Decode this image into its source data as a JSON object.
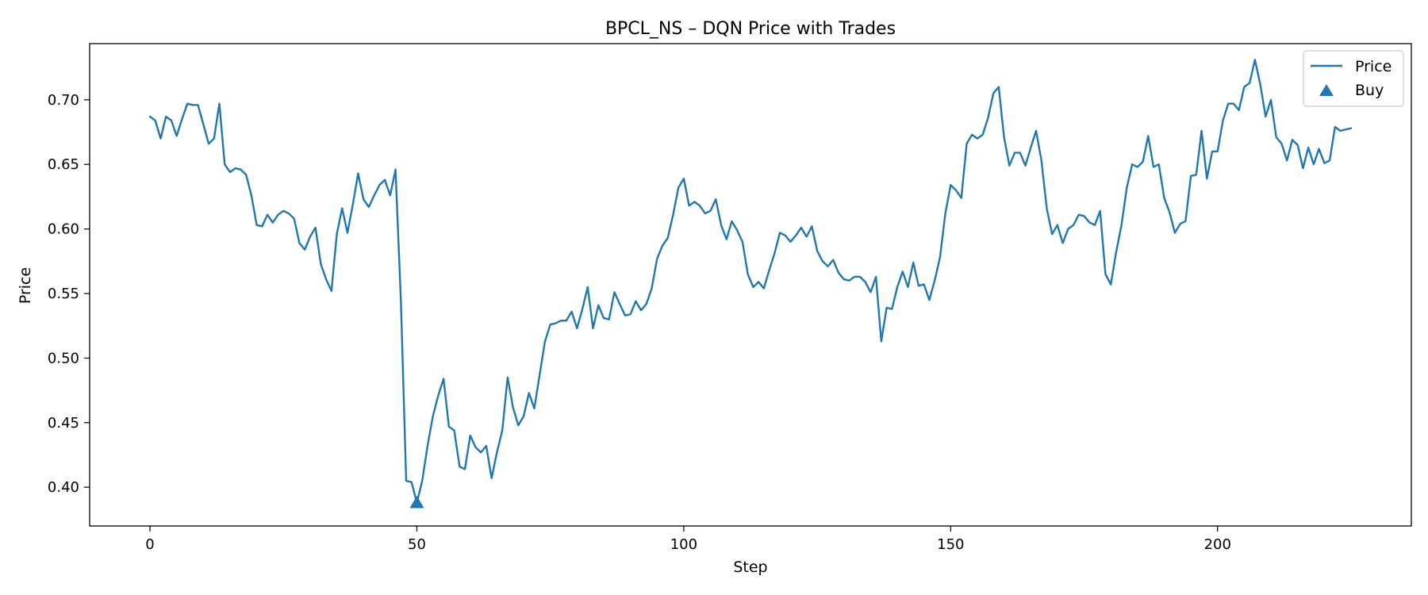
{
  "chart_data": {
    "type": "line",
    "title": "BPCL_NS – DQN Price with Trades",
    "xlabel": "Step",
    "ylabel": "Price",
    "xlim": [
      -11.3,
      236.3
    ],
    "ylim": [
      0.37,
      0.7435
    ],
    "xticks": [
      0,
      50,
      100,
      150,
      200
    ],
    "yticks": [
      0.4,
      0.45,
      0.5,
      0.55,
      0.6,
      0.65,
      0.7
    ],
    "grid": false,
    "legend": {
      "placement": "top-right",
      "entries": [
        "Price",
        "Buy"
      ]
    },
    "series": [
      {
        "name": "Price",
        "type": "line",
        "color": "#1f77b4",
        "y": [
          0.687,
          0.684,
          0.67,
          0.687,
          0.684,
          0.672,
          0.685,
          0.697,
          0.696,
          0.696,
          0.681,
          0.666,
          0.67,
          0.697,
          0.65,
          0.644,
          0.647,
          0.646,
          0.642,
          0.626,
          0.603,
          0.602,
          0.611,
          0.605,
          0.611,
          0.614,
          0.612,
          0.608,
          0.589,
          0.584,
          0.594,
          0.601,
          0.573,
          0.561,
          0.552,
          0.596,
          0.616,
          0.597,
          0.619,
          0.643,
          0.623,
          0.617,
          0.626,
          0.634,
          0.638,
          0.626,
          0.646,
          0.545,
          0.405,
          0.404,
          0.388,
          0.405,
          0.432,
          0.455,
          0.471,
          0.484,
          0.447,
          0.444,
          0.416,
          0.414,
          0.44,
          0.431,
          0.427,
          0.432,
          0.407,
          0.427,
          0.444,
          0.485,
          0.462,
          0.448,
          0.455,
          0.473,
          0.461,
          0.487,
          0.513,
          0.526,
          0.527,
          0.529,
          0.529,
          0.536,
          0.523,
          0.538,
          0.555,
          0.523,
          0.541,
          0.531,
          0.53,
          0.551,
          0.542,
          0.533,
          0.534,
          0.544,
          0.537,
          0.542,
          0.554,
          0.577,
          0.587,
          0.593,
          0.611,
          0.632,
          0.639,
          0.618,
          0.621,
          0.618,
          0.612,
          0.614,
          0.623,
          0.603,
          0.592,
          0.606,
          0.599,
          0.59,
          0.565,
          0.555,
          0.559,
          0.554,
          0.568,
          0.581,
          0.597,
          0.595,
          0.59,
          0.595,
          0.601,
          0.594,
          0.602,
          0.583,
          0.575,
          0.571,
          0.576,
          0.566,
          0.561,
          0.56,
          0.563,
          0.563,
          0.559,
          0.551,
          0.563,
          0.513,
          0.539,
          0.538,
          0.555,
          0.567,
          0.555,
          0.574,
          0.556,
          0.557,
          0.545,
          0.56,
          0.578,
          0.612,
          0.634,
          0.63,
          0.624,
          0.666,
          0.673,
          0.67,
          0.673,
          0.686,
          0.705,
          0.71,
          0.671,
          0.649,
          0.659,
          0.659,
          0.649,
          0.663,
          0.676,
          0.653,
          0.616,
          0.596,
          0.603,
          0.589,
          0.6,
          0.603,
          0.611,
          0.61,
          0.605,
          0.603,
          0.614,
          0.565,
          0.557,
          0.582,
          0.603,
          0.632,
          0.65,
          0.648,
          0.652,
          0.672,
          0.648,
          0.65,
          0.624,
          0.613,
          0.597,
          0.604,
          0.606,
          0.641,
          0.642,
          0.676,
          0.639,
          0.66,
          0.66,
          0.684,
          0.697,
          0.697,
          0.692,
          0.71,
          0.713,
          0.731,
          0.712,
          0.687,
          0.7,
          0.671,
          0.666,
          0.653,
          0.669,
          0.665,
          0.647,
          0.663,
          0.65,
          0.662,
          0.651,
          0.653,
          0.679,
          0.676,
          0.677,
          0.678
        ]
      },
      {
        "name": "Buy",
        "type": "scatter",
        "marker": "triangle-up",
        "color": "#1f77b4",
        "points": [
          {
            "x": 50,
            "y": 0.388
          }
        ]
      }
    ]
  }
}
